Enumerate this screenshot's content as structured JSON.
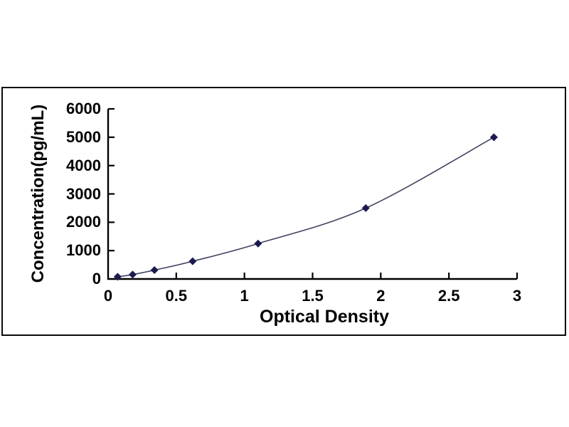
{
  "chart_data": {
    "type": "line",
    "style": "scatter-line standard curve with diamond markers, smooth fitted line",
    "title": "",
    "xlabel": "Optical Density",
    "ylabel": "Concentration(pg/mL)",
    "x": [
      0.07,
      0.18,
      0.34,
      0.62,
      1.1,
      1.89,
      2.83
    ],
    "y": [
      78,
      156,
      313,
      625,
      1250,
      2500,
      5000
    ],
    "xlim": [
      0,
      3
    ],
    "ylim": [
      0,
      6000
    ],
    "x_ticks": [
      0,
      0.5,
      1,
      1.5,
      2,
      2.5,
      3
    ],
    "x_tick_labels": [
      "0",
      "0.5",
      "1",
      "1.5",
      "2",
      "2.5",
      "3"
    ],
    "y_ticks": [
      0,
      1000,
      2000,
      3000,
      4000,
      5000,
      6000
    ],
    "y_tick_labels": [
      "0",
      "1000",
      "2000",
      "3000",
      "4000",
      "5000",
      "6000"
    ],
    "grid": false,
    "legend": "none",
    "marker": "diamond",
    "colors": {
      "marker": "#1c1a52",
      "line": "#42425e",
      "axis": "#000000",
      "text": "#000000",
      "frame_border": "#0b0b0b",
      "background": "#ffffff"
    }
  }
}
